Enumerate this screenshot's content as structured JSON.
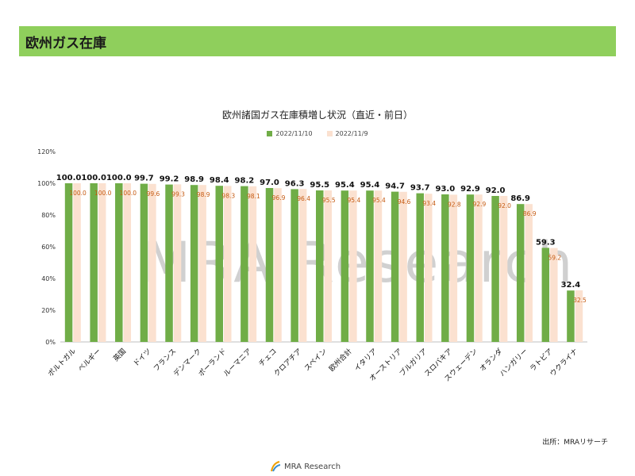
{
  "header": {
    "title": "欧州ガス在庫"
  },
  "watermark": "MRA Research",
  "source": "出所：MRAリサーチ",
  "footer": {
    "logo_text": "MRA Research"
  },
  "colors": {
    "header_bg": "#8fcf5c",
    "series_recent": "#70ad47",
    "series_prev": "#fbe1d0",
    "prev_label": "#c55a11"
  },
  "chart_data": {
    "type": "bar",
    "title": "欧州諸国ガス在庫積増し状況（直近・前日）",
    "categories": [
      "ポルトガル",
      "ベルギー",
      "英国",
      "ドイツ",
      "フランス",
      "デンマーク",
      "ポーランド",
      "ルーマニア",
      "チェコ",
      "クロアチア",
      "スペイン",
      "欧州合計",
      "イタリア",
      "オーストリア",
      "ブルガリア",
      "スロバキア",
      "スウェーデン",
      "オランダ",
      "ハンガリー",
      "ラトビア",
      "ウクライナ"
    ],
    "series": [
      {
        "name": "2022/11/10",
        "values": [
          100.0,
          100.0,
          100.0,
          99.7,
          99.2,
          98.9,
          98.4,
          98.2,
          97.0,
          96.3,
          95.5,
          95.4,
          95.4,
          94.7,
          93.7,
          93.0,
          92.9,
          92.0,
          86.9,
          59.3,
          32.4
        ]
      },
      {
        "name": "2022/11/9",
        "values": [
          100.0,
          100.0,
          100.0,
          99.6,
          99.3,
          98.9,
          98.3,
          98.1,
          96.9,
          96.4,
          95.5,
          95.4,
          95.4,
          94.6,
          93.4,
          92.8,
          92.9,
          92.0,
          86.9,
          59.2,
          32.5
        ]
      }
    ],
    "yticks": [
      "0%",
      "20%",
      "40%",
      "60%",
      "80%",
      "100%",
      "120%"
    ],
    "ylim": [
      0,
      120
    ],
    "legend": "top"
  }
}
